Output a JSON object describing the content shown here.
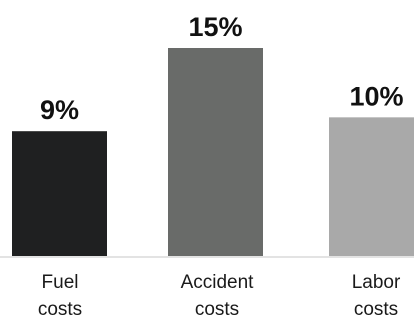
{
  "chart_data": {
    "type": "bar",
    "categories": [
      [
        "Fuel",
        "costs"
      ],
      [
        "Accident",
        "costs"
      ],
      [
        "Labor",
        "costs"
      ]
    ],
    "values": [
      9,
      15,
      10
    ],
    "value_labels": [
      "9%",
      "15%",
      "10%"
    ],
    "colors": [
      "#1f2021",
      "#696b69",
      "#a9a9a9"
    ],
    "baseline_color": "#e3e3e3",
    "title": "",
    "xlabel": "",
    "ylabel": "",
    "ylim": [
      0,
      15
    ],
    "grid": false,
    "legend": "none"
  }
}
